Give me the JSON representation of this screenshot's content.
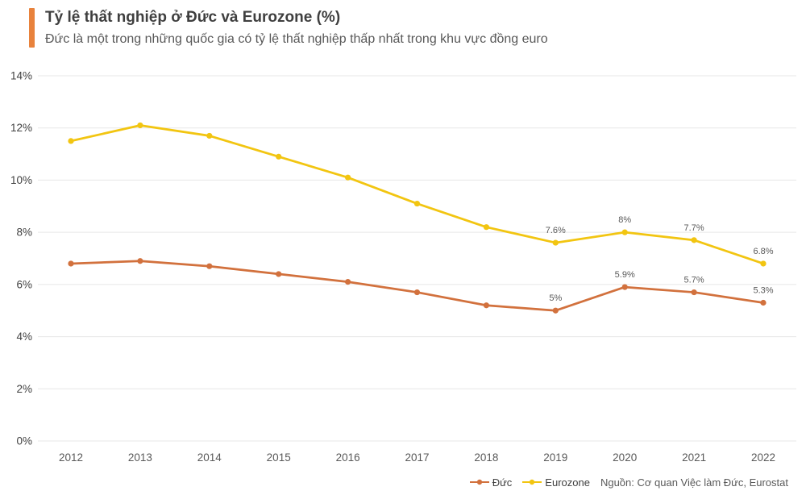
{
  "header": {
    "title": "Tỷ lệ thất nghiệp ở Đức và Eurozone (%)",
    "subtitle": "Đức là một trong những quốc gia có tỷ lệ thất nghiệp thấp nhất trong khu vực đồng euro",
    "accent_color": "#e8823c"
  },
  "chart_data": {
    "type": "line",
    "title": "Tỷ lệ thất nghiệp ở Đức và Eurozone (%)",
    "categories": [
      "2012",
      "2013",
      "2014",
      "2015",
      "2016",
      "2017",
      "2018",
      "2019",
      "2020",
      "2021",
      "2022"
    ],
    "series": [
      {
        "name": "Đức",
        "color": "#d2713d",
        "values": [
          6.8,
          6.9,
          6.7,
          6.4,
          6.1,
          5.7,
          5.2,
          5.0,
          5.9,
          5.7,
          5.3
        ],
        "point_labels": [
          null,
          null,
          null,
          null,
          null,
          null,
          null,
          "5%",
          "5.9%",
          "5.7%",
          "5.3%"
        ]
      },
      {
        "name": "Eurozone",
        "color": "#f2c511",
        "values": [
          11.5,
          12.1,
          11.7,
          10.9,
          10.1,
          9.1,
          8.2,
          7.6,
          8.0,
          7.7,
          6.8
        ],
        "point_labels": [
          null,
          null,
          null,
          null,
          null,
          null,
          null,
          "7.6%",
          "8%",
          "7.7%",
          "6.8%"
        ]
      }
    ],
    "xlabel": "",
    "ylabel": "",
    "ylim": [
      0,
      14
    ],
    "y_ticks": [
      "0%",
      "2%",
      "4%",
      "6%",
      "8%",
      "10%",
      "12%",
      "14%"
    ],
    "grid": true,
    "grid_color": "#e7e7e7",
    "tick_label_color": "#404040",
    "x_label_color": "#595959",
    "point_label_color": "#595959",
    "legend_position": "bottom-right"
  },
  "footer": {
    "source": "Nguồn: Cơ quan Việc làm Đức, Eurostat"
  }
}
